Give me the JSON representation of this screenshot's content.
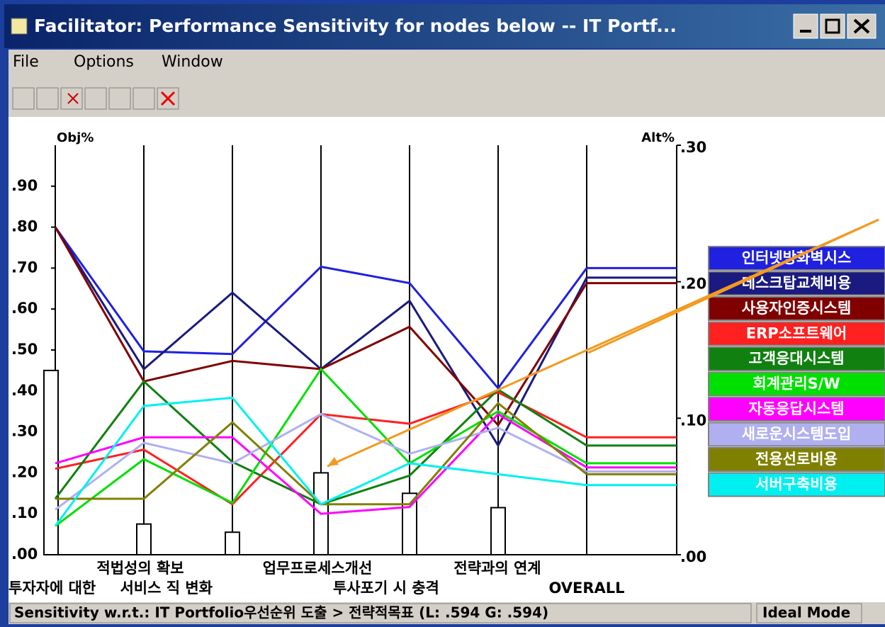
{
  "window": {
    "title": "Facilitator: Performance Sensitivity for nodes below -- IT Portf...",
    "menu": [
      "File",
      "Options",
      "Window"
    ],
    "status": [
      "Sensitivity w.r.t.:  IT Portfolio우선순위 도출 > 전략적목표 (L: .594 G: .594)",
      "Ideal Mode"
    ]
  },
  "chart_data": {
    "type": "line",
    "ylabel": "Obj%",
    "y2label": "Alt%",
    "categories": [
      "투자자에 대한",
      "적법성의 확보",
      "서비스 직 변화",
      "업무프로세스개선",
      "투사포기 시 충격",
      "전략과의 연계",
      "OVERALL"
    ],
    "ylim": [
      0,
      1
    ],
    "yticks": [
      {
        "value": 0,
        "label": ".00"
      },
      {
        "value": 0.1,
        "label": ".10"
      },
      {
        "value": 0.2,
        "label": ".20"
      },
      {
        "value": 0.3,
        "label": ".30"
      },
      {
        "value": 0.4,
        "label": ".40"
      },
      {
        "value": 0.5,
        "label": ".50"
      },
      {
        "value": 0.6,
        "label": ".60"
      },
      {
        "value": 0.7,
        "label": ".70"
      },
      {
        "value": 0.8,
        "label": ".80"
      },
      {
        "value": 0.9,
        "label": ".90"
      }
    ],
    "y2lim": [
      0,
      0.3
    ],
    "y2ticks": [
      {
        "value": 0,
        "label": ".00"
      },
      {
        "value": 0.1,
        "label": ".10"
      },
      {
        "value": 0.2,
        "label": ".20"
      },
      {
        "value": 0.3,
        "label": ".30"
      }
    ],
    "objective_bars": {
      "color": "#ffffff",
      "values": [
        0.45,
        0.075,
        0.055,
        0.2,
        0.15,
        0.115
      ]
    },
    "series": [
      {
        "name": "인터넷방화벽시스",
        "color": "#2020e0",
        "axis": "y2",
        "values": [
          0.24,
          0.149,
          0.147,
          0.211,
          0.199,
          0.122,
          0.21
        ]
      },
      {
        "name": "데스크탑교체비용",
        "color": "#1a1a80",
        "axis": "y2",
        "values": [
          0.24,
          0.136,
          0.192,
          0.136,
          0.186,
          0.08,
          0.203
        ]
      },
      {
        "name": "사용자인증시스템",
        "color": "#800000",
        "axis": "y2",
        "values": [
          0.24,
          0.127,
          0.142,
          0.136,
          0.167,
          0.095,
          0.199
        ]
      },
      {
        "name": "ERP소프트웨어",
        "color": "#ff2020",
        "axis": "y2",
        "values": [
          0.063,
          0.077,
          0.037,
          0.103,
          0.096,
          0.119,
          0.086
        ]
      },
      {
        "name": "고객응대시스템",
        "color": "#108010",
        "axis": "y2",
        "values": [
          0.041,
          0.127,
          0.068,
          0.037,
          0.058,
          0.121,
          0.08
        ]
      },
      {
        "name": "회계관리S/W",
        "color": "#00e000",
        "axis": "y2",
        "values": [
          0.021,
          0.07,
          0.038,
          0.136,
          0.067,
          0.105,
          0.067
        ]
      },
      {
        "name": "자동응답시스템",
        "color": "#ff00ff",
        "axis": "y2",
        "values": [
          0.067,
          0.086,
          0.086,
          0.03,
          0.035,
          0.103,
          0.064
        ]
      },
      {
        "name": "새로운시스템도입",
        "color": "#b0b0f0",
        "axis": "y2",
        "values": [
          0.033,
          0.082,
          0.067,
          0.103,
          0.074,
          0.093,
          0.061
        ]
      },
      {
        "name": "전용선로비용",
        "color": "#808000",
        "axis": "y2",
        "values": [
          0.041,
          0.041,
          0.097,
          0.037,
          0.037,
          0.111,
          0.059
        ]
      },
      {
        "name": "서버구축비용",
        "color": "#00f0f0",
        "axis": "y2",
        "values": [
          0.021,
          0.109,
          0.115,
          0.037,
          0.067,
          0.059,
          0.051
        ]
      }
    ]
  }
}
